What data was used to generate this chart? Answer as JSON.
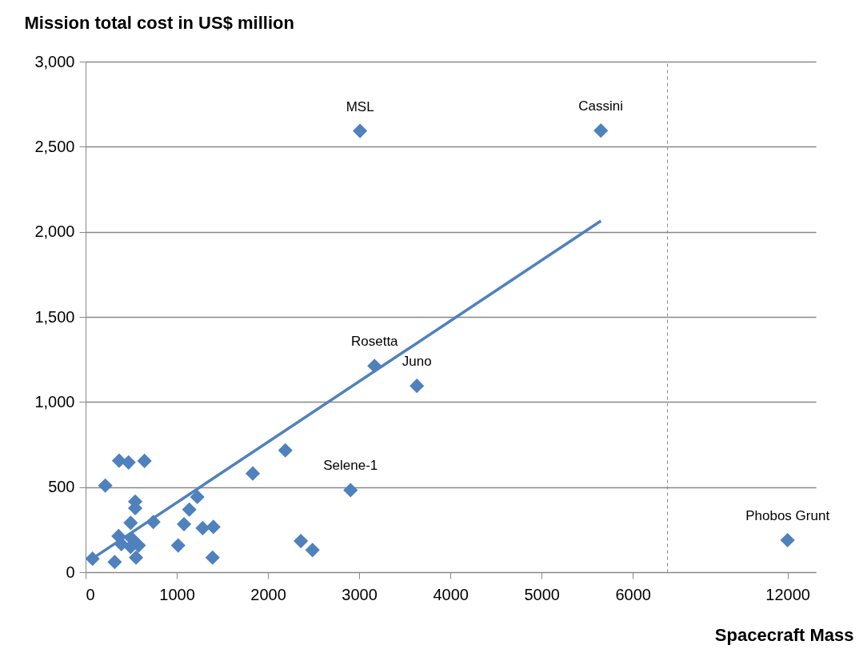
{
  "chart_data": [
    {
      "type": "scatter",
      "ylabel": "Mission total cost in US$ million",
      "marker": "diamond",
      "grid": "y",
      "legend": false,
      "xlim": [
        0,
        6375
      ],
      "xticks": [
        0,
        1000,
        2000,
        3000,
        4000,
        5000,
        6000
      ],
      "ylim": [
        0,
        3000
      ],
      "yticks": [
        0,
        500,
        {
          "value": 1000,
          "label": "1,000"
        },
        {
          "value": 1500,
          "label": "1,500"
        },
        {
          "value": 2000,
          "label": "2,000"
        },
        {
          "value": 2500,
          "label": "2,500"
        },
        {
          "value": 3000,
          "label": "3,000"
        }
      ],
      "series": [
        {
          "color": "#4f81bd",
          "x": [
            76,
            319,
            216,
            368,
            471,
            646,
            544,
            544,
            494,
            743,
            362,
            392,
            509,
            582,
            494,
            553,
            1225,
            1137,
            1079,
            1284,
            1401,
            1015,
            1392,
            1833,
            2190,
            2360,
            2488,
            3168,
            3632,
            2905,
            3009,
            5649
          ],
          "values": [
            79,
            60,
            509,
            655,
            645,
            654,
            415,
            376,
            290,
            295,
            212,
            165,
            196,
            157,
            149,
            86,
            442,
            368,
            282,
            259,
            266,
            157,
            86,
            580,
            716,
            183,
            130,
            1212,
            1095,
            482,
            2593,
            2595
          ]
        },
        {
          "type": "line",
          "marker": "none",
          "color": "#4f81bd",
          "x": [
            50,
            5650
          ],
          "values": [
            71,
            2064
          ]
        }
      ],
      "annotations": [
        {
          "text": "MSL",
          "x": 3009,
          "y": 2593
        },
        {
          "text": "Cassini",
          "x": 5649,
          "y": 2595
        },
        {
          "text": "Rosetta",
          "x": 3168,
          "y": 1212
        },
        {
          "text": "Juno",
          "x": 3632,
          "y": 1095
        },
        {
          "text": "Selene-1",
          "x": 2905,
          "y": 482
        }
      ]
    },
    {
      "type": "scatter",
      "xlabel": "Spacecraft Mass",
      "marker": "diamond",
      "grid": "y",
      "legend": false,
      "tick_labels": "x",
      "categories": [
        "12000"
      ],
      "ylim": [
        0,
        3000
      ],
      "yticks": [
        0,
        500,
        1000,
        1500,
        2000,
        2500,
        3000
      ],
      "series": [
        {
          "color": "#4f81bd",
          "values": [
            188
          ]
        }
      ],
      "annotations": [
        {
          "text": "Phobos Grunt",
          "x": "12000",
          "y": 188
        }
      ]
    }
  ]
}
